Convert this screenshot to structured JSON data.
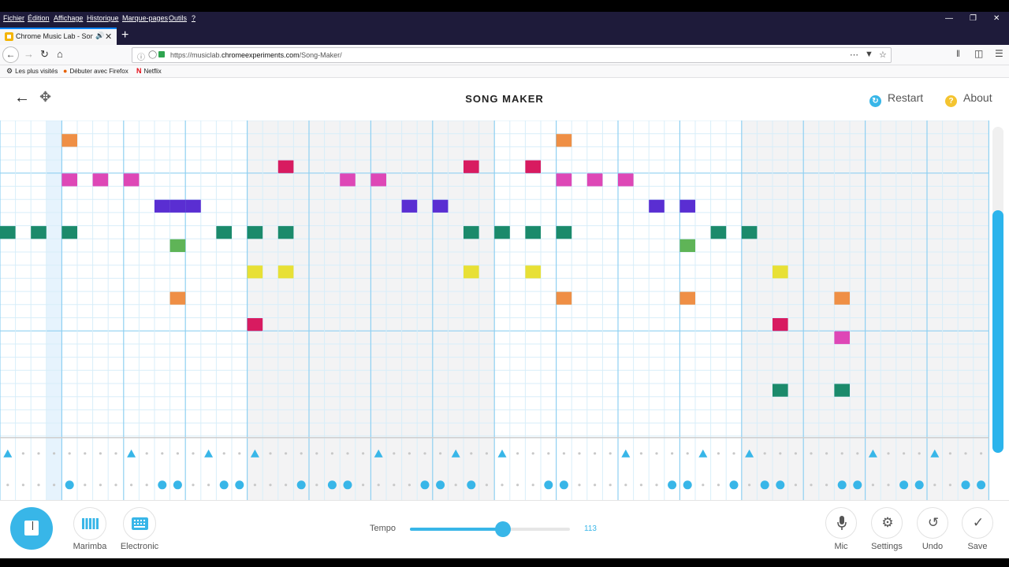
{
  "browser": {
    "menu": [
      "Fichier",
      "Édition",
      "Affichage",
      "Historique",
      "Marque-pages",
      "Outils",
      "?"
    ],
    "tab_title": "Chrome Music Lab - Song M",
    "url_prefix": "https://musiclab.",
    "url_domain": "chromeexperiments.com",
    "url_path": "/Song-Maker/",
    "bookmarks": [
      "Les plus visités",
      "Débuter avec Firefox",
      "Netflix"
    ]
  },
  "app": {
    "title": "SONG MAKER",
    "restart_label": "Restart",
    "about_label": "About"
  },
  "grid": {
    "columns": 64,
    "rows": 24,
    "highlight_column": 3,
    "melody_notes": [
      {
        "col": 4,
        "row": 1,
        "color": "#ef8f45"
      },
      {
        "col": 36,
        "row": 1,
        "color": "#ef8f45"
      },
      {
        "col": 18,
        "row": 3,
        "color": "#d81b60"
      },
      {
        "col": 30,
        "row": 3,
        "color": "#d81b60"
      },
      {
        "col": 34,
        "row": 3,
        "color": "#d81b60"
      },
      {
        "col": 4,
        "row": 4,
        "color": "#de47b6"
      },
      {
        "col": 6,
        "row": 4,
        "color": "#de47b6"
      },
      {
        "col": 8,
        "row": 4,
        "color": "#de47b6"
      },
      {
        "col": 22,
        "row": 4,
        "color": "#de47b6"
      },
      {
        "col": 24,
        "row": 4,
        "color": "#de47b6"
      },
      {
        "col": 36,
        "row": 4,
        "color": "#de47b6"
      },
      {
        "col": 38,
        "row": 4,
        "color": "#de47b6"
      },
      {
        "col": 40,
        "row": 4,
        "color": "#de47b6"
      },
      {
        "col": 10,
        "row": 6,
        "color": "#5a2ed2"
      },
      {
        "col": 11,
        "row": 6,
        "color": "#5a2ed2"
      },
      {
        "col": 12,
        "row": 6,
        "color": "#5a2ed2"
      },
      {
        "col": 26,
        "row": 6,
        "color": "#5a2ed2"
      },
      {
        "col": 28,
        "row": 6,
        "color": "#5a2ed2"
      },
      {
        "col": 42,
        "row": 6,
        "color": "#5a2ed2"
      },
      {
        "col": 44,
        "row": 6,
        "color": "#5a2ed2"
      },
      {
        "col": 0,
        "row": 8,
        "color": "#1b8a6b"
      },
      {
        "col": 2,
        "row": 8,
        "color": "#1b8a6b"
      },
      {
        "col": 4,
        "row": 8,
        "color": "#1b8a6b"
      },
      {
        "col": 14,
        "row": 8,
        "color": "#1b8a6b"
      },
      {
        "col": 16,
        "row": 8,
        "color": "#1b8a6b"
      },
      {
        "col": 18,
        "row": 8,
        "color": "#1b8a6b"
      },
      {
        "col": 30,
        "row": 8,
        "color": "#1b8a6b"
      },
      {
        "col": 32,
        "row": 8,
        "color": "#1b8a6b"
      },
      {
        "col": 34,
        "row": 8,
        "color": "#1b8a6b"
      },
      {
        "col": 36,
        "row": 8,
        "color": "#1b8a6b"
      },
      {
        "col": 46,
        "row": 8,
        "color": "#1b8a6b"
      },
      {
        "col": 48,
        "row": 8,
        "color": "#1b8a6b"
      },
      {
        "col": 11,
        "row": 9,
        "color": "#5fb457"
      },
      {
        "col": 44,
        "row": 9,
        "color": "#5fb457"
      },
      {
        "col": 16,
        "row": 11,
        "color": "#e8e035"
      },
      {
        "col": 18,
        "row": 11,
        "color": "#e8e035"
      },
      {
        "col": 30,
        "row": 11,
        "color": "#e8e035"
      },
      {
        "col": 34,
        "row": 11,
        "color": "#e8e035"
      },
      {
        "col": 50,
        "row": 11,
        "color": "#e8e035"
      },
      {
        "col": 11,
        "row": 13,
        "color": "#ef8f45"
      },
      {
        "col": 36,
        "row": 13,
        "color": "#ef8f45"
      },
      {
        "col": 44,
        "row": 13,
        "color": "#ef8f45"
      },
      {
        "col": 54,
        "row": 13,
        "color": "#ef8f45"
      },
      {
        "col": 16,
        "row": 15,
        "color": "#d81b60"
      },
      {
        "col": 50,
        "row": 15,
        "color": "#d81b60"
      },
      {
        "col": 54,
        "row": 16,
        "color": "#de47b6"
      },
      {
        "col": 50,
        "row": 20,
        "color": "#1b8a6b"
      },
      {
        "col": 54,
        "row": 20,
        "color": "#1b8a6b"
      }
    ],
    "triangle_beats": [
      0,
      8,
      13,
      16,
      24,
      29,
      32,
      40,
      45,
      48,
      56,
      60
    ],
    "circle_beats": [
      4,
      10,
      11,
      14,
      15,
      19,
      21,
      22,
      27,
      28,
      30,
      35,
      36,
      43,
      44,
      47,
      49,
      50,
      54,
      55,
      58,
      59,
      62,
      63
    ],
    "note_color_accent": "#38b6e8"
  },
  "controls": {
    "instrument1_label": "Marimba",
    "instrument2_label": "Electronic",
    "tempo_label": "Tempo",
    "tempo_value": "113",
    "tempo_fraction": 0.58,
    "mic_label": "Mic",
    "settings_label": "Settings",
    "undo_label": "Undo",
    "save_label": "Save"
  }
}
